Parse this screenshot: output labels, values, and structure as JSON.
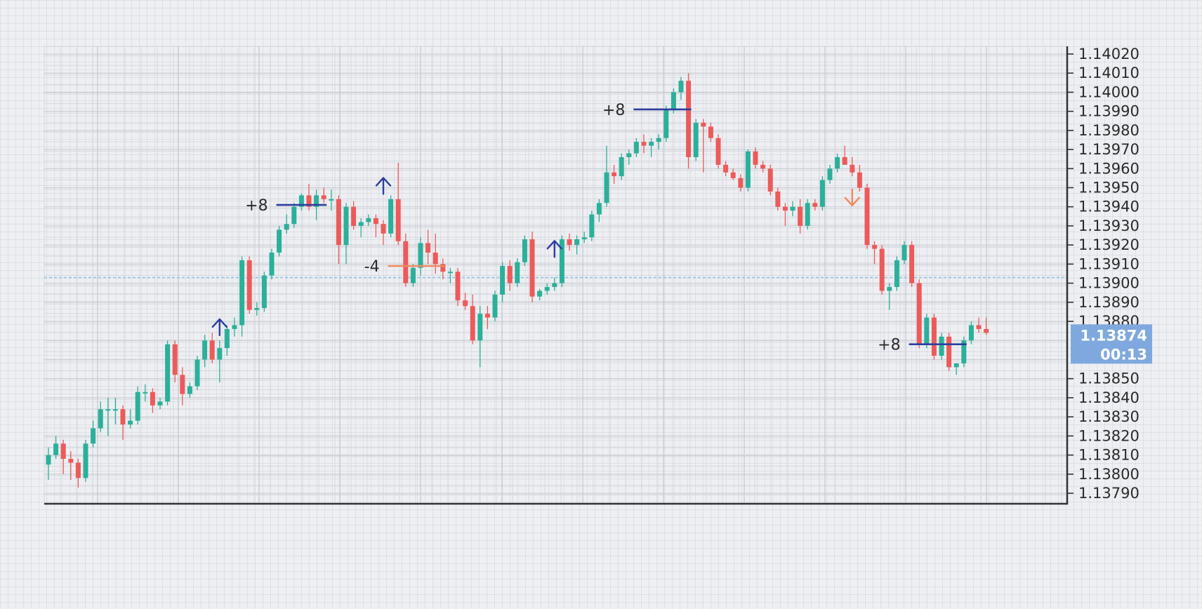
{
  "chart_data": {
    "type": "candlestick",
    "title": "",
    "xlabel": "",
    "ylabel": "",
    "ylim": [
      1.1378,
      1.14025
    ],
    "y_ticks": [
      "1.14020",
      "1.14010",
      "1.14000",
      "1.13990",
      "1.13980",
      "1.13970",
      "1.13960",
      "1.13950",
      "1.13940",
      "1.13930",
      "1.13920",
      "1.13910",
      "1.13900",
      "1.13890",
      "1.13880",
      "1.13850",
      "1.13840",
      "1.13830",
      "1.13820",
      "1.13810",
      "1.13800",
      "1.13790"
    ],
    "grid": true,
    "reference_line": 1.13903,
    "current_price": {
      "price": "1.13874",
      "timer": "00:13",
      "value": 1.13874
    },
    "colors": {
      "up": "#2bb09a",
      "down": "#ec5a5a",
      "axis": "#333333",
      "grid": "#c8cbd2",
      "annotation_up": "#2c3e9e",
      "annotation_down": "#ee8a5e",
      "badge": "#7fa9de",
      "reference": "#8cc4e8"
    },
    "candles": [
      [
        1.13805,
        1.13814,
        1.13797,
        1.1381
      ],
      [
        1.1381,
        1.1382,
        1.13808,
        1.13816
      ],
      [
        1.13816,
        1.13818,
        1.138,
        1.13808
      ],
      [
        1.13808,
        1.13812,
        1.13797,
        1.13806
      ],
      [
        1.13806,
        1.13808,
        1.13793,
        1.13798
      ],
      [
        1.13798,
        1.13818,
        1.13796,
        1.13816
      ],
      [
        1.13816,
        1.13828,
        1.13814,
        1.13824
      ],
      [
        1.13824,
        1.13838,
        1.13822,
        1.13834
      ],
      [
        1.13834,
        1.1384,
        1.1382,
        1.13834
      ],
      [
        1.13834,
        1.1384,
        1.13826,
        1.13834
      ],
      [
        1.13834,
        1.13836,
        1.13818,
        1.13826
      ],
      [
        1.13826,
        1.13834,
        1.13824,
        1.13828
      ],
      [
        1.13828,
        1.13846,
        1.13826,
        1.13843
      ],
      [
        1.13843,
        1.13847,
        1.13838,
        1.13843
      ],
      [
        1.13843,
        1.13845,
        1.13832,
        1.13836
      ],
      [
        1.13836,
        1.1384,
        1.13834,
        1.13838
      ],
      [
        1.13838,
        1.1387,
        1.13836,
        1.13868
      ],
      [
        1.13868,
        1.1387,
        1.13848,
        1.13852
      ],
      [
        1.13852,
        1.13856,
        1.13836,
        1.13842
      ],
      [
        1.13842,
        1.13848,
        1.1384,
        1.13846
      ],
      [
        1.13846,
        1.13862,
        1.13844,
        1.1386
      ],
      [
        1.1386,
        1.13873,
        1.13856,
        1.1387
      ],
      [
        1.1387,
        1.13874,
        1.13858,
        1.1386
      ],
      [
        1.1386,
        1.1387,
        1.13848,
        1.13866
      ],
      [
        1.13866,
        1.13878,
        1.13862,
        1.13876
      ],
      [
        1.13876,
        1.13882,
        1.13872,
        1.13878
      ],
      [
        1.13878,
        1.13914,
        1.13872,
        1.13912
      ],
      [
        1.13912,
        1.13914,
        1.13884,
        1.13886
      ],
      [
        1.13886,
        1.1389,
        1.13883,
        1.13887
      ],
      [
        1.13887,
        1.13906,
        1.13885,
        1.13904
      ],
      [
        1.13904,
        1.13918,
        1.13902,
        1.13916
      ],
      [
        1.13916,
        1.1393,
        1.13914,
        1.13928
      ],
      [
        1.13928,
        1.13936,
        1.13926,
        1.13931
      ],
      [
        1.13931,
        1.13942,
        1.13929,
        1.1394
      ],
      [
        1.1394,
        1.13947,
        1.13938,
        1.13946
      ],
      [
        1.13946,
        1.13952,
        1.13938,
        1.1394
      ],
      [
        1.1394,
        1.13949,
        1.13933,
        1.13946
      ],
      [
        1.13946,
        1.1395,
        1.13942,
        1.13944
      ],
      [
        1.13944,
        1.13949,
        1.13938,
        1.13944
      ],
      [
        1.13944,
        1.13946,
        1.1391,
        1.1392
      ],
      [
        1.1392,
        1.13942,
        1.1391,
        1.1394
      ],
      [
        1.1394,
        1.13943,
        1.13928,
        1.1393
      ],
      [
        1.1393,
        1.13934,
        1.13924,
        1.13932
      ],
      [
        1.13932,
        1.13936,
        1.1393,
        1.13934
      ],
      [
        1.13934,
        1.13936,
        1.13924,
        1.13931
      ],
      [
        1.13931,
        1.13933,
        1.1392,
        1.13926
      ],
      [
        1.13926,
        1.13946,
        1.13924,
        1.13944
      ],
      [
        1.13944,
        1.13963,
        1.1392,
        1.13922
      ],
      [
        1.13922,
        1.13926,
        1.13898,
        1.139
      ],
      [
        1.139,
        1.1391,
        1.13898,
        1.13908
      ],
      [
        1.13908,
        1.13924,
        1.13904,
        1.13921
      ],
      [
        1.13921,
        1.13928,
        1.1391,
        1.13916
      ],
      [
        1.13916,
        1.13926,
        1.13905,
        1.1391
      ],
      [
        1.1391,
        1.13913,
        1.13902,
        1.13906
      ],
      [
        1.13906,
        1.13908,
        1.139,
        1.13906
      ],
      [
        1.13906,
        1.13908,
        1.13888,
        1.13891
      ],
      [
        1.13891,
        1.13895,
        1.13886,
        1.13888
      ],
      [
        1.13888,
        1.13894,
        1.13868,
        1.1387
      ],
      [
        1.1387,
        1.13888,
        1.13856,
        1.13884
      ],
      [
        1.13884,
        1.13888,
        1.13876,
        1.13882
      ],
      [
        1.13882,
        1.13896,
        1.1388,
        1.13894
      ],
      [
        1.13894,
        1.13911,
        1.1389,
        1.13909
      ],
      [
        1.13909,
        1.13912,
        1.13896,
        1.139
      ],
      [
        1.139,
        1.13913,
        1.13898,
        1.13911
      ],
      [
        1.13911,
        1.13925,
        1.13909,
        1.13923
      ],
      [
        1.13923,
        1.13927,
        1.1389,
        1.13893
      ],
      [
        1.13893,
        1.13897,
        1.13891,
        1.13896
      ],
      [
        1.13896,
        1.139,
        1.13894,
        1.13898
      ],
      [
        1.13898,
        1.13903,
        1.13896,
        1.139
      ],
      [
        1.139,
        1.13925,
        1.13898,
        1.13923
      ],
      [
        1.13923,
        1.13926,
        1.13917,
        1.1392
      ],
      [
        1.1392,
        1.13925,
        1.13915,
        1.13923
      ],
      [
        1.13923,
        1.13927,
        1.13921,
        1.13924
      ],
      [
        1.13924,
        1.13938,
        1.13922,
        1.13936
      ],
      [
        1.13936,
        1.13944,
        1.13932,
        1.13942
      ],
      [
        1.13942,
        1.13972,
        1.1394,
        1.13958
      ],
      [
        1.13958,
        1.13962,
        1.13952,
        1.13956
      ],
      [
        1.13956,
        1.13968,
        1.13954,
        1.13966
      ],
      [
        1.13966,
        1.1397,
        1.13962,
        1.13968
      ],
      [
        1.13968,
        1.13976,
        1.13966,
        1.13974
      ],
      [
        1.13974,
        1.13978,
        1.13968,
        1.13972
      ],
      [
        1.13972,
        1.13976,
        1.13966,
        1.13974
      ],
      [
        1.13974,
        1.13978,
        1.1397,
        1.13976
      ],
      [
        1.13976,
        1.13993,
        1.13974,
        1.13991
      ],
      [
        1.13991,
        1.14002,
        1.13989,
        1.14
      ],
      [
        1.14,
        1.14008,
        1.13996,
        1.14006
      ],
      [
        1.14006,
        1.1401,
        1.1396,
        1.13966
      ],
      [
        1.13966,
        1.13986,
        1.13964,
        1.13984
      ],
      [
        1.13984,
        1.13986,
        1.13958,
        1.13982
      ],
      [
        1.13982,
        1.13984,
        1.13974,
        1.13976
      ],
      [
        1.13976,
        1.13978,
        1.1396,
        1.13962
      ],
      [
        1.13962,
        1.13964,
        1.13956,
        1.13958
      ],
      [
        1.13958,
        1.1396,
        1.13954,
        1.13955
      ],
      [
        1.13955,
        1.13957,
        1.13948,
        1.1395
      ],
      [
        1.1395,
        1.1397,
        1.13948,
        1.13969
      ],
      [
        1.13969,
        1.13971,
        1.1396,
        1.13962
      ],
      [
        1.13962,
        1.13964,
        1.13958,
        1.1396
      ],
      [
        1.1396,
        1.13962,
        1.13946,
        1.13948
      ],
      [
        1.13948,
        1.1395,
        1.13938,
        1.1394
      ],
      [
        1.1394,
        1.13942,
        1.1393,
        1.13938
      ],
      [
        1.13938,
        1.13943,
        1.13935,
        1.1394
      ],
      [
        1.1394,
        1.13944,
        1.13926,
        1.1393
      ],
      [
        1.1393,
        1.13944,
        1.13928,
        1.13942
      ],
      [
        1.13942,
        1.13944,
        1.13938,
        1.1394
      ],
      [
        1.1394,
        1.13956,
        1.13938,
        1.13954
      ],
      [
        1.13954,
        1.13962,
        1.13952,
        1.1396
      ],
      [
        1.1396,
        1.13968,
        1.13958,
        1.13966
      ],
      [
        1.13966,
        1.13972,
        1.13962,
        1.13962
      ],
      [
        1.13962,
        1.13966,
        1.13956,
        1.13958
      ],
      [
        1.13958,
        1.13962,
        1.13948,
        1.1395
      ],
      [
        1.1395,
        1.13952,
        1.13918,
        1.1392
      ],
      [
        1.1392,
        1.13922,
        1.1391,
        1.13918
      ],
      [
        1.13918,
        1.1392,
        1.13894,
        1.13896
      ],
      [
        1.13896,
        1.139,
        1.13886,
        1.13898
      ],
      [
        1.13898,
        1.13914,
        1.13896,
        1.13912
      ],
      [
        1.13912,
        1.13922,
        1.1391,
        1.1392
      ],
      [
        1.1392,
        1.13922,
        1.13898,
        1.139
      ],
      [
        1.139,
        1.13902,
        1.13866,
        1.13868
      ],
      [
        1.13868,
        1.13884,
        1.13866,
        1.13882
      ],
      [
        1.13882,
        1.13884,
        1.1386,
        1.13862
      ],
      [
        1.13862,
        1.13874,
        1.1386,
        1.13872
      ],
      [
        1.13872,
        1.13874,
        1.13854,
        1.13856
      ],
      [
        1.13856,
        1.13858,
        1.13852,
        1.13858
      ],
      [
        1.13858,
        1.13872,
        1.13856,
        1.1387
      ],
      [
        1.1387,
        1.1388,
        1.13868,
        1.13878
      ],
      [
        1.13878,
        1.13882,
        1.13874,
        1.13876
      ],
      [
        1.13876,
        1.13882,
        1.13873,
        1.13874
      ]
    ],
    "annotations": [
      {
        "label": "+8",
        "price": 1.13941,
        "from": 31,
        "to": 37,
        "direction": "up"
      },
      {
        "label": "-4",
        "price": 1.13909,
        "from": 46,
        "to": 53,
        "direction": "down"
      },
      {
        "label": "+8",
        "price": 1.13991,
        "from": 79,
        "to": 86,
        "direction": "up"
      },
      {
        "label": "+8",
        "price": 1.13868,
        "from": 116,
        "to": 123,
        "direction": "up"
      }
    ],
    "entry_arrows": [
      {
        "index": 23,
        "price": 1.13876,
        "direction": "up"
      },
      {
        "index": 45,
        "price": 1.1395,
        "direction": "up"
      },
      {
        "index": 68,
        "price": 1.13917,
        "direction": "up"
      },
      {
        "index": 108,
        "price": 1.13944,
        "direction": "down"
      }
    ]
  }
}
